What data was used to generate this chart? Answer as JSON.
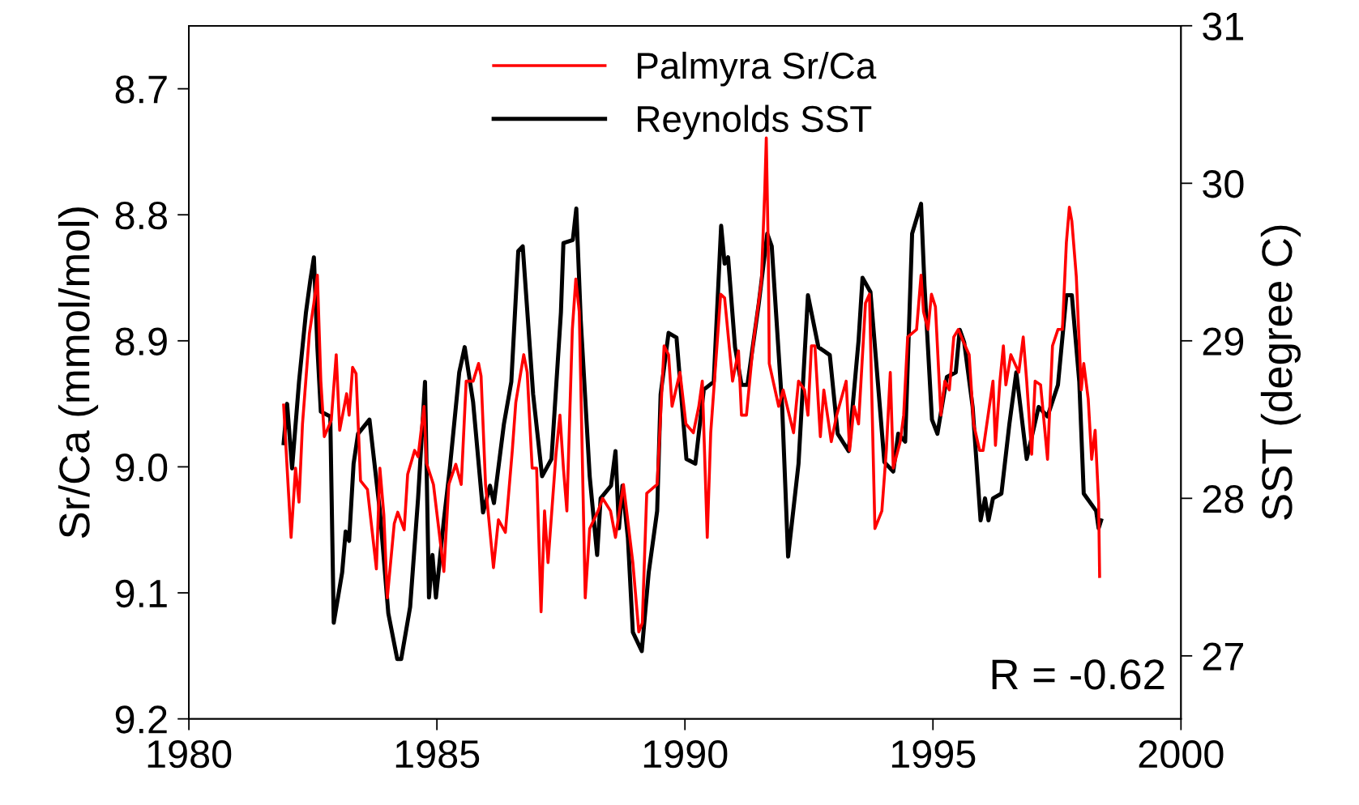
{
  "chart_data": {
    "type": "line",
    "xlabel": null,
    "ylabel": "Sr/Ca (mmol/mol)",
    "y2label": "SST (degree C)",
    "xlim": [
      1980,
      2000
    ],
    "xticks": [
      1980,
      1985,
      1990,
      1995,
      2000
    ],
    "ylim": [
      9.2,
      8.65
    ],
    "yticks": [
      8.7,
      8.8,
      8.9,
      {
        "value": 9.0,
        "label": "9.0"
      },
      9.1,
      9.2
    ],
    "y2lim": [
      26.6,
      31
    ],
    "y2ticks": [
      27,
      28,
      29,
      30,
      31
    ],
    "legend": "top",
    "grid": false,
    "marker": "none",
    "line_style": "solid",
    "annotations": [
      "R = -0.62"
    ],
    "series": [
      {
        "name": "Palmyra Sr/Ca",
        "color": "#ff0000",
        "axis": "y",
        "x": [
          1981.91,
          1981.98,
          1982.06,
          1982.15,
          1982.22,
          1982.29,
          1982.43,
          1982.52,
          1982.59,
          1982.66,
          1982.73,
          1982.87,
          1982.97,
          1983.04,
          1983.18,
          1983.23,
          1983.3,
          1983.37,
          1983.46,
          1983.6,
          1983.78,
          1983.85,
          1983.93,
          1984.0,
          1984.14,
          1984.21,
          1984.34,
          1984.41,
          1984.55,
          1984.62,
          1984.74,
          1984.79,
          1984.93,
          1985.14,
          1985.24,
          1985.38,
          1985.49,
          1985.59,
          1985.73,
          1985.84,
          1985.89,
          1985.98,
          1986.14,
          1986.24,
          1986.38,
          1986.52,
          1986.59,
          1986.75,
          1986.82,
          1986.92,
          1987.01,
          1987.1,
          1987.17,
          1987.24,
          1987.4,
          1987.48,
          1987.55,
          1987.62,
          1987.73,
          1987.8,
          1987.87,
          1987.99,
          1988.08,
          1988.25,
          1988.34,
          1988.5,
          1988.6,
          1988.76,
          1988.95,
          1989.07,
          1989.14,
          1989.23,
          1989.44,
          1989.58,
          1989.67,
          1989.74,
          1989.9,
          1990.02,
          1990.17,
          1990.28,
          1990.35,
          1990.45,
          1990.52,
          1990.72,
          1990.8,
          1990.96,
          1991.08,
          1991.14,
          1991.24,
          1991.38,
          1991.54,
          1991.61,
          1991.64,
          1991.68,
          1991.7,
          1991.89,
          1991.98,
          1992.19,
          1992.29,
          1992.41,
          1992.48,
          1992.55,
          1992.62,
          1992.73,
          1992.8,
          1992.95,
          1993.06,
          1993.25,
          1993.32,
          1993.41,
          1993.5,
          1993.64,
          1993.72,
          1993.83,
          1993.97,
          1994.06,
          1994.14,
          1994.2,
          1994.34,
          1994.41,
          1994.49,
          1994.67,
          1994.76,
          1994.81,
          1994.9,
          1994.97,
          1995.05,
          1995.16,
          1995.24,
          1995.33,
          1995.42,
          1995.51,
          1995.65,
          1995.73,
          1995.82,
          1995.94,
          1996.01,
          1996.21,
          1996.26,
          1996.35,
          1996.42,
          1996.47,
          1996.57,
          1996.73,
          1996.82,
          1996.89,
          1996.99,
          1997.06,
          1997.17,
          1997.31,
          1997.41,
          1997.52,
          1997.61,
          1997.69,
          1997.75,
          1997.8,
          1997.89,
          1997.99,
          1998.04,
          1998.13,
          1998.2,
          1998.27,
          1998.34,
          1998.36
        ],
        "values": [
          8.951,
          9.001,
          9.056,
          9.001,
          9.028,
          8.966,
          8.894,
          8.87,
          8.848,
          8.932,
          8.976,
          8.963,
          8.911,
          8.971,
          8.942,
          8.959,
          8.921,
          8.926,
          9.011,
          9.018,
          9.081,
          9.001,
          9.038,
          9.104,
          9.045,
          9.036,
          9.05,
          9.006,
          8.987,
          8.992,
          8.952,
          8.997,
          9.014,
          9.083,
          9.014,
          8.998,
          9.014,
          8.932,
          8.932,
          8.918,
          8.928,
          9.014,
          9.08,
          9.042,
          9.052,
          8.987,
          8.949,
          8.911,
          8.925,
          9.001,
          9.001,
          9.115,
          9.035,
          9.076,
          8.99,
          8.959,
          9.001,
          9.035,
          8.891,
          8.851,
          8.877,
          9.104,
          9.049,
          9.035,
          9.025,
          9.035,
          9.056,
          9.014,
          9.076,
          9.131,
          9.124,
          9.021,
          9.014,
          8.904,
          8.911,
          8.952,
          8.925,
          8.966,
          8.973,
          8.952,
          8.932,
          9.056,
          8.973,
          8.863,
          8.866,
          8.932,
          8.908,
          8.959,
          8.959,
          8.901,
          8.853,
          8.78,
          8.739,
          8.829,
          8.918,
          8.952,
          8.939,
          8.973,
          8.932,
          8.939,
          8.959,
          8.904,
          8.904,
          8.976,
          8.939,
          8.98,
          8.959,
          8.932,
          8.987,
          8.952,
          8.966,
          8.87,
          8.863,
          9.049,
          9.035,
          8.987,
          8.925,
          9.001,
          8.98,
          8.959,
          8.897,
          8.891,
          8.848,
          8.877,
          8.891,
          8.863,
          8.873,
          8.959,
          8.932,
          8.939,
          8.897,
          8.891,
          8.904,
          8.911,
          8.966,
          8.987,
          8.987,
          8.932,
          8.983,
          8.932,
          8.904,
          8.935,
          8.911,
          8.925,
          8.897,
          8.932,
          8.99,
          8.932,
          8.935,
          8.994,
          8.904,
          8.891,
          8.891,
          8.822,
          8.794,
          8.805,
          8.849,
          8.939,
          8.918,
          8.946,
          8.994,
          8.971,
          9.028,
          9.087
        ]
      },
      {
        "name": "Reynolds SST",
        "color": "#000000",
        "axis": "y2",
        "x": [
          1981.91,
          1981.98,
          1982.08,
          1982.22,
          1982.36,
          1982.45,
          1982.52,
          1982.59,
          1982.66,
          1982.85,
          1982.92,
          1983.09,
          1983.16,
          1983.23,
          1983.32,
          1983.41,
          1983.64,
          1983.85,
          1984.02,
          1984.2,
          1984.28,
          1984.46,
          1984.62,
          1984.76,
          1984.84,
          1984.91,
          1984.98,
          1985.14,
          1985.26,
          1985.45,
          1985.56,
          1985.73,
          1985.93,
          1986.07,
          1986.15,
          1986.35,
          1986.5,
          1986.64,
          1986.73,
          1986.94,
          1987.12,
          1987.31,
          1987.5,
          1987.55,
          1987.74,
          1987.81,
          1987.9,
          1988.08,
          1988.23,
          1988.3,
          1988.51,
          1988.6,
          1988.67,
          1988.74,
          1988.85,
          1988.95,
          1989.13,
          1989.27,
          1989.44,
          1989.51,
          1989.67,
          1989.83,
          1990.03,
          1990.21,
          1990.38,
          1990.58,
          1990.73,
          1990.8,
          1990.87,
          1991.01,
          1991.14,
          1991.26,
          1991.49,
          1991.66,
          1991.75,
          1991.96,
          1992.08,
          1992.29,
          1992.48,
          1992.69,
          1992.92,
          1993.08,
          1993.3,
          1993.5,
          1993.58,
          1993.74,
          1993.93,
          1994.02,
          1994.2,
          1994.3,
          1994.44,
          1994.58,
          1994.76,
          1994.83,
          1994.98,
          1995.09,
          1995.28,
          1995.46,
          1995.54,
          1995.63,
          1995.8,
          1995.96,
          1996.05,
          1996.12,
          1996.21,
          1996.38,
          1996.54,
          1996.68,
          1996.89,
          1997.05,
          1997.13,
          1997.31,
          1997.52,
          1997.69,
          1997.8,
          1997.95,
          1998.04,
          1998.29,
          1998.34,
          1998.39
        ],
        "values": [
          28.35,
          28.6,
          28.19,
          28.74,
          29.18,
          29.39,
          29.53,
          28.96,
          28.55,
          28.52,
          27.21,
          27.53,
          27.79,
          27.73,
          28.22,
          28.41,
          28.5,
          27.92,
          27.27,
          26.98,
          26.98,
          27.31,
          28.0,
          28.74,
          27.37,
          27.64,
          27.37,
          27.86,
          28.19,
          28.8,
          28.96,
          28.61,
          27.91,
          28.08,
          27.97,
          28.47,
          28.74,
          29.57,
          29.6,
          28.66,
          28.14,
          28.25,
          29.18,
          29.62,
          29.64,
          29.84,
          29.13,
          28.14,
          27.64,
          28.0,
          28.08,
          28.3,
          27.81,
          28.08,
          27.75,
          27.15,
          27.03,
          27.53,
          27.92,
          28.66,
          29.05,
          29.02,
          28.25,
          28.22,
          28.69,
          28.74,
          29.73,
          29.49,
          29.53,
          28.96,
          28.72,
          28.72,
          29.24,
          29.68,
          29.6,
          28.58,
          27.63,
          28.22,
          29.29,
          28.96,
          28.91,
          28.41,
          28.3,
          29.0,
          29.4,
          29.31,
          28.58,
          28.23,
          28.17,
          28.41,
          28.36,
          29.68,
          29.87,
          29.35,
          28.5,
          28.41,
          28.77,
          28.8,
          29.07,
          28.99,
          28.58,
          27.86,
          28.0,
          27.86,
          28.0,
          28.03,
          28.47,
          28.8,
          28.25,
          28.47,
          28.58,
          28.52,
          28.72,
          29.29,
          29.29,
          28.74,
          28.03,
          27.92,
          27.81,
          27.86
        ]
      }
    ]
  }
}
